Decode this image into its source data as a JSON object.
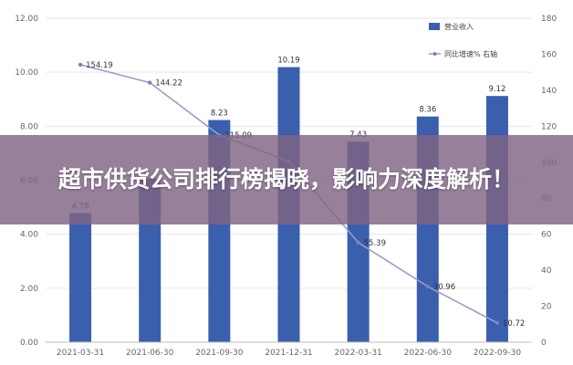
{
  "banner": {
    "title": "超市供货公司排行榜揭晓，影响力深度解析！"
  },
  "colors": {
    "bar": "#3a5fad",
    "line": "#9b9cc9",
    "grid": "#e6e6e6",
    "banner": "#806484"
  },
  "chart_data": {
    "type": "bar+line",
    "categories": [
      "2021-03-31",
      "2021-06-30",
      "2021-09-30",
      "2021-12-31",
      "2022-03-31",
      "2022-06-30",
      "2022-09-30"
    ],
    "series": [
      {
        "name": "营业收入",
        "type": "bar",
        "axis": "left",
        "values": [
          4.78,
          6.06,
          8.23,
          10.19,
          7.43,
          8.36,
          9.12
        ],
        "labels": [
          "4.78",
          "",
          "8.23",
          "10.19",
          "7.43",
          "8.36",
          "9.12"
        ]
      },
      {
        "name": "同比增速% 右轴",
        "type": "line",
        "axis": "right",
        "values": [
          154.19,
          144.22,
          115.09,
          100.5,
          55.39,
          30.96,
          10.72
        ],
        "labels": [
          "154.19",
          "144.22",
          "115.09",
          "",
          "55.39",
          "30.96",
          "10.72"
        ]
      }
    ],
    "left_axis": {
      "ylim": [
        0,
        12
      ],
      "ticks": [
        0,
        2,
        4,
        6,
        8,
        10,
        12
      ],
      "tick_labels": [
        "0.00",
        "2.00",
        "4.00",
        "6.00",
        "8.00",
        "10.00",
        "12.00"
      ]
    },
    "right_axis": {
      "ylim": [
        0,
        180
      ],
      "ticks": [
        0,
        20,
        40,
        60,
        80,
        100,
        120,
        140,
        160,
        180
      ],
      "tick_labels": [
        "0",
        "20",
        "40",
        "60",
        "80",
        "100",
        "120",
        "140",
        "160",
        "180"
      ]
    },
    "grid": true,
    "legend_position": "top-right"
  }
}
